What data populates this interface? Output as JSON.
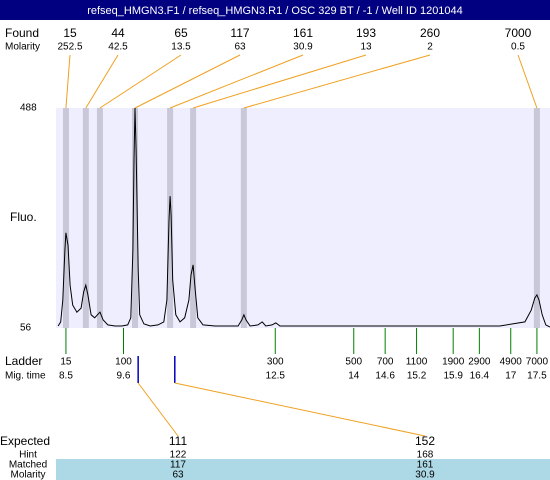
{
  "chart_data": {
    "type": "line",
    "title": "refseq_HMGN3.F1 / refseq_HMGN3.R1 / OSC 329 BT / -1 / Well ID 1201044",
    "ylabel": "Fluo.",
    "ylim": [
      56,
      488
    ],
    "yticks": [
      56,
      488
    ],
    "xlim": [
      8.31,
      17.75
    ],
    "x": [
      8.35,
      8.4,
      8.44,
      8.48,
      8.5,
      8.54,
      8.58,
      8.63,
      8.71,
      8.79,
      8.84,
      8.88,
      8.92,
      8.98,
      9.05,
      9.11,
      9.15,
      9.21,
      9.3,
      9.44,
      9.57,
      9.68,
      9.74,
      9.78,
      9.8,
      9.82,
      9.84,
      9.88,
      9.91,
      9.99,
      10.11,
      10.26,
      10.37,
      10.43,
      10.47,
      10.49,
      10.51,
      10.54,
      10.6,
      10.68,
      10.77,
      10.85,
      10.89,
      10.93,
      10.97,
      11.02,
      11.12,
      11.35,
      11.79,
      11.86,
      11.9,
      11.94,
      12.02,
      12.17,
      12.25,
      12.32,
      12.44,
      12.51,
      12.59,
      12.97,
      14.88,
      16.79,
      17.27,
      17.39,
      17.46,
      17.5,
      17.54,
      17.6,
      17.67,
      17.75
    ],
    "series": [
      {
        "color": "#000000",
        "values": [
          60,
          68,
          111,
          209,
          243,
          219,
          140,
          101,
          87,
          95,
          127,
          140,
          121,
          82,
          76,
          83,
          87,
          72,
          62,
          60,
          60,
          62,
          76,
          209,
          386,
          488,
          406,
          170,
          82,
          64,
          60,
          62,
          68,
          111,
          268,
          315,
          278,
          150,
          82,
          68,
          76,
          111,
          160,
          180,
          131,
          76,
          62,
          60,
          60,
          72,
          82,
          72,
          60,
          62,
          68,
          60,
          62,
          66,
          60,
          60,
          60,
          60,
          68,
          91,
          115,
          121,
          111,
          82,
          62,
          58
        ]
      }
    ],
    "plot_color": "#eeeeff",
    "found": {
      "label": "Found",
      "molarity_label": "Molarity",
      "sizes": [
        15,
        44,
        65,
        117,
        161,
        193,
        260,
        7000
      ],
      "molarity": [
        252.5,
        42.5,
        13.5,
        63,
        30.9,
        13,
        2,
        0.5
      ],
      "times": [
        8.5,
        8.88,
        9.15,
        9.82,
        10.49,
        10.93,
        11.9,
        17.5
      ],
      "line_color": "#f0a020",
      "band_color": "#c8c8d8"
    },
    "ladder": {
      "label": "Ladder",
      "time_label": "Mig. time",
      "sizes": [
        15,
        100,
        300,
        500,
        700,
        1100,
        1900,
        2900,
        4900,
        7000
      ],
      "times": [
        8.5,
        9.6,
        12.5,
        14,
        14.6,
        15.2,
        15.9,
        16.4,
        17,
        17.5
      ],
      "color": "#008000"
    },
    "expected": {
      "label": "Expected",
      "hint_label": "Hint",
      "matched_label": "Matched",
      "molarity_label": "Molarity",
      "sizes": [
        111,
        152
      ],
      "times": [
        9.88,
        10.58
      ],
      "hint": [
        122,
        168
      ],
      "matched": [
        117,
        161
      ],
      "molarity": [
        63,
        30.9
      ],
      "marker_color": "#0000c0",
      "line_color": "#f0a020",
      "row_color": "#add8e6"
    }
  }
}
